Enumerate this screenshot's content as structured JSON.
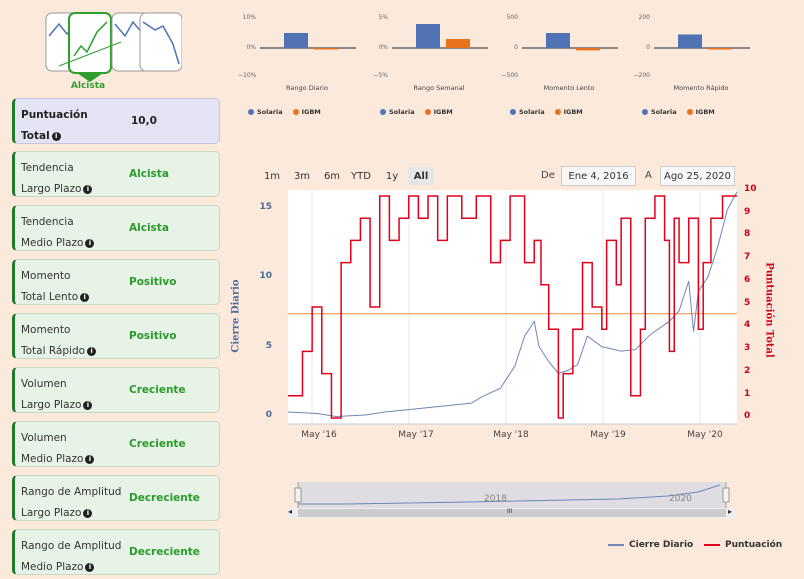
{
  "trend": {
    "label": "Alcista"
  },
  "cards": [
    {
      "label_line1": "Puntuación",
      "label_line2": "Total",
      "value": "10,0"
    },
    {
      "label_line1": "Tendencia",
      "label_line2": "Largo Plazo",
      "value": "Alcista"
    },
    {
      "label_line1": "Tendencia",
      "label_line2": "Medio Plazo",
      "value": "Alcista"
    },
    {
      "label_line1": "Momento",
      "label_line2": "Total Lento",
      "value": "Positivo"
    },
    {
      "label_line1": "Momento",
      "label_line2": "Total Rápido",
      "value": "Positivo"
    },
    {
      "label_line1": "Volumen",
      "label_line2": "Largo Plazo",
      "value": "Creciente"
    },
    {
      "label_line1": "Volumen",
      "label_line2": "Medio Plazo",
      "value": "Creciente"
    },
    {
      "label_line1": "Rango de Amplitud",
      "label_line2": "Largo Plazo",
      "value": "Decreciente"
    },
    {
      "label_line1": "Rango de Amplitud",
      "label_line2": "Medio Plazo",
      "value": "Decreciente"
    }
  ],
  "mini_legend": {
    "a": "Solaria",
    "b": "IGBM"
  },
  "colors": {
    "solaria": "#4f73b5",
    "igbm": "#e8731e",
    "close": "#6f86b6",
    "score": "#e0001b",
    "threshold": "#f4a460"
  },
  "chart_data": [
    {
      "type": "bar",
      "title": "Rango Diario",
      "yticks": [
        "10%",
        "0%",
        "−10%"
      ],
      "ylim": [
        -10,
        10
      ],
      "series": [
        {
          "name": "Solaria",
          "values": [
            5
          ]
        },
        {
          "name": "IGBM",
          "values": [
            -0.5
          ]
        }
      ]
    },
    {
      "type": "bar",
      "title": "Rango Semanal",
      "yticks": [
        "5%",
        "0%",
        "−5%"
      ],
      "ylim": [
        -5,
        5
      ],
      "series": [
        {
          "name": "Solaria",
          "values": [
            4
          ]
        },
        {
          "name": "IGBM",
          "values": [
            1.5
          ]
        }
      ]
    },
    {
      "type": "bar",
      "title": "Momento Lento",
      "yticks": [
        "500",
        "0",
        "−500"
      ],
      "ylim": [
        -500,
        500
      ],
      "series": [
        {
          "name": "Solaria",
          "values": [
            250
          ]
        },
        {
          "name": "IGBM",
          "values": [
            -40
          ]
        }
      ]
    },
    {
      "type": "bar",
      "title": "Momento Rápido",
      "yticks": [
        "200",
        "0",
        "−200"
      ],
      "ylim": [
        -200,
        200
      ],
      "series": [
        {
          "name": "Solaria",
          "values": [
            90
          ]
        },
        {
          "name": "IGBM",
          "values": [
            -5
          ]
        }
      ]
    },
    {
      "type": "line",
      "title": "",
      "ylabel_left": "Cierre Diario",
      "ylabel_right": "Puntuación Total",
      "left_ticks": [
        "15",
        "10",
        "5",
        "0"
      ],
      "right_ticks": [
        "10",
        "9",
        "8",
        "7",
        "6",
        "5",
        "4",
        "3",
        "2",
        "1",
        "0"
      ],
      "x_ticks": [
        "May '16",
        "May '17",
        "May '18",
        "May '19",
        "May '20"
      ],
      "x_range": [
        2016.0,
        2020.65
      ],
      "left_range": [
        0,
        16
      ],
      "right_range": [
        0,
        10
      ],
      "threshold": 4.7,
      "series": [
        {
          "name": "Cierre Diario",
          "points": [
            [
              2016.0,
              0.4
            ],
            [
              2016.3,
              0.3
            ],
            [
              2016.5,
              0.1
            ],
            [
              2016.8,
              0.2
            ],
            [
              2017.0,
              0.4
            ],
            [
              2017.3,
              0.6
            ],
            [
              2017.6,
              0.8
            ],
            [
              2017.9,
              1.0
            ],
            [
              2018.0,
              1.4
            ],
            [
              2018.2,
              2.0
            ],
            [
              2018.35,
              3.5
            ],
            [
              2018.45,
              5.5
            ],
            [
              2018.55,
              6.5
            ],
            [
              2018.6,
              4.8
            ],
            [
              2018.7,
              3.8
            ],
            [
              2018.8,
              3.0
            ],
            [
              2018.9,
              3.2
            ],
            [
              2019.0,
              3.6
            ],
            [
              2019.1,
              5.5
            ],
            [
              2019.25,
              4.8
            ],
            [
              2019.45,
              4.5
            ],
            [
              2019.6,
              4.6
            ],
            [
              2019.75,
              5.6
            ],
            [
              2019.95,
              6.5
            ],
            [
              2020.05,
              7.2
            ],
            [
              2020.15,
              9.2
            ],
            [
              2020.2,
              5.8
            ],
            [
              2020.25,
              8.5
            ],
            [
              2020.35,
              9.5
            ],
            [
              2020.45,
              11.5
            ],
            [
              2020.55,
              14.0
            ],
            [
              2020.65,
              15.2
            ]
          ]
        },
        {
          "name": "Puntuación",
          "points": [
            [
              2016.0,
              1
            ],
            [
              2016.15,
              3
            ],
            [
              2016.25,
              5
            ],
            [
              2016.35,
              2
            ],
            [
              2016.45,
              0
            ],
            [
              2016.55,
              7
            ],
            [
              2016.65,
              8
            ],
            [
              2016.75,
              9
            ],
            [
              2016.85,
              5
            ],
            [
              2016.95,
              10
            ],
            [
              2017.05,
              8
            ],
            [
              2017.15,
              9
            ],
            [
              2017.25,
              10
            ],
            [
              2017.35,
              9
            ],
            [
              2017.45,
              10
            ],
            [
              2017.55,
              8
            ],
            [
              2017.65,
              10
            ],
            [
              2017.8,
              9
            ],
            [
              2017.95,
              10
            ],
            [
              2018.1,
              7
            ],
            [
              2018.2,
              8
            ],
            [
              2018.3,
              10
            ],
            [
              2018.45,
              7
            ],
            [
              2018.55,
              8
            ],
            [
              2018.62,
              6
            ],
            [
              2018.7,
              4
            ],
            [
              2018.8,
              0
            ],
            [
              2018.85,
              2
            ],
            [
              2018.95,
              4
            ],
            [
              2019.05,
              7
            ],
            [
              2019.15,
              5
            ],
            [
              2019.25,
              4
            ],
            [
              2019.3,
              8
            ],
            [
              2019.4,
              6
            ],
            [
              2019.45,
              9
            ],
            [
              2019.55,
              1
            ],
            [
              2019.65,
              4
            ],
            [
              2019.7,
              9
            ],
            [
              2019.8,
              10
            ],
            [
              2019.9,
              8
            ],
            [
              2019.95,
              3
            ],
            [
              2020.0,
              9
            ],
            [
              2020.05,
              7
            ],
            [
              2020.15,
              9
            ],
            [
              2020.25,
              4
            ],
            [
              2020.3,
              7
            ],
            [
              2020.38,
              9
            ],
            [
              2020.5,
              10
            ],
            [
              2020.65,
              10
            ]
          ]
        }
      ],
      "legend": [
        "Cierre Diario",
        "Puntuación"
      ]
    }
  ],
  "range_selector": {
    "buttons": [
      "1m",
      "3m",
      "6m",
      "YTD",
      "1y",
      "All"
    ],
    "active": "All",
    "from_label": "De",
    "from_value": "Ene 4, 2016",
    "to_label": "A",
    "to_value": "Ago 25, 2020"
  },
  "navigator": {
    "labels": [
      "2018",
      "2020"
    ],
    "scroll_center": "III",
    "scroll_left": "◂",
    "scroll_right": "▸"
  }
}
